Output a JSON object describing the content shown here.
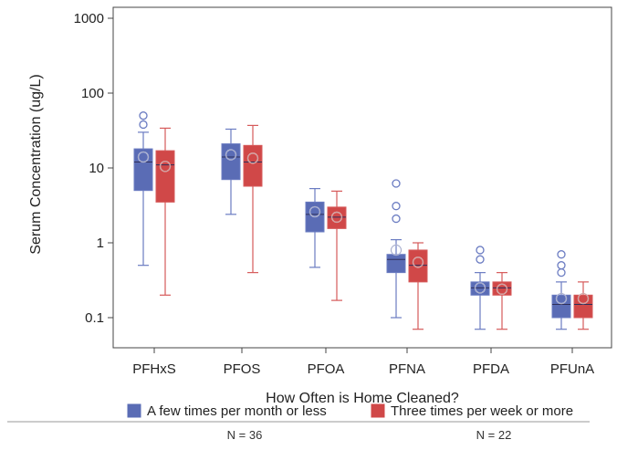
{
  "chart_data": {
    "type": "box",
    "title": "",
    "xlabel": "How Often is Home Cleaned?",
    "ylabel": "Serum Concentration (ug/L)",
    "y_scale": "log",
    "ylim": [
      0.06,
      1000
    ],
    "y_ticks": [
      {
        "value": 0.1,
        "label": "0.1"
      },
      {
        "value": 1,
        "label": "1"
      },
      {
        "value": 10,
        "label": "10"
      },
      {
        "value": 100,
        "label": "100"
      },
      {
        "value": 1000,
        "label": "1000"
      }
    ],
    "grid": false,
    "legend_position": "bottom",
    "categories": [
      "PFHxS",
      "PFOS",
      "PFOA",
      "PFNA",
      "PFDA",
      "PFUnA"
    ],
    "series": [
      {
        "name": "A few times per month or less",
        "color": "#5a6cb5",
        "n_label": "N = 36",
        "boxes": [
          {
            "min": 0.5,
            "q1": 5.0,
            "median": 12,
            "q3": 18,
            "max": 30,
            "mean": 14,
            "outliers": [
              38,
              50
            ]
          },
          {
            "min": 2.4,
            "q1": 7.0,
            "median": 14,
            "q3": 21,
            "max": 33,
            "mean": 15,
            "outliers": []
          },
          {
            "min": 0.47,
            "q1": 1.4,
            "median": 2.4,
            "q3": 3.5,
            "max": 5.3,
            "mean": 2.6,
            "outliers": []
          },
          {
            "min": 0.1,
            "q1": 0.4,
            "median": 0.6,
            "q3": 0.7,
            "max": 1.1,
            "mean": 0.8,
            "outliers": [
              2.1,
              3.1,
              6.2
            ]
          },
          {
            "min": 0.07,
            "q1": 0.2,
            "median": 0.25,
            "q3": 0.3,
            "max": 0.4,
            "mean": 0.25,
            "outliers": [
              0.6,
              0.8
            ]
          },
          {
            "min": 0.07,
            "q1": 0.1,
            "median": 0.15,
            "q3": 0.2,
            "max": 0.3,
            "mean": 0.18,
            "outliers": [
              0.4,
              0.5,
              0.7
            ]
          }
        ]
      },
      {
        "name": "Three times per week or more",
        "color": "#d04848",
        "n_label": "N = 22",
        "boxes": [
          {
            "min": 0.2,
            "q1": 3.5,
            "median": 11,
            "q3": 17,
            "max": 34,
            "mean": 10.5,
            "outliers": []
          },
          {
            "min": 0.4,
            "q1": 5.7,
            "median": 12,
            "q3": 20,
            "max": 37,
            "mean": 13.5,
            "outliers": []
          },
          {
            "min": 0.17,
            "q1": 1.55,
            "median": 2.2,
            "q3": 3.0,
            "max": 4.9,
            "mean": 2.2,
            "outliers": []
          },
          {
            "min": 0.07,
            "q1": 0.3,
            "median": 0.5,
            "q3": 0.8,
            "max": 1.0,
            "mean": 0.55,
            "outliers": []
          },
          {
            "min": 0.07,
            "q1": 0.2,
            "median": 0.25,
            "q3": 0.3,
            "max": 0.4,
            "mean": 0.24,
            "outliers": []
          },
          {
            "min": 0.07,
            "q1": 0.1,
            "median": 0.15,
            "q3": 0.2,
            "max": 0.3,
            "mean": 0.18,
            "outliers": []
          }
        ]
      }
    ]
  }
}
